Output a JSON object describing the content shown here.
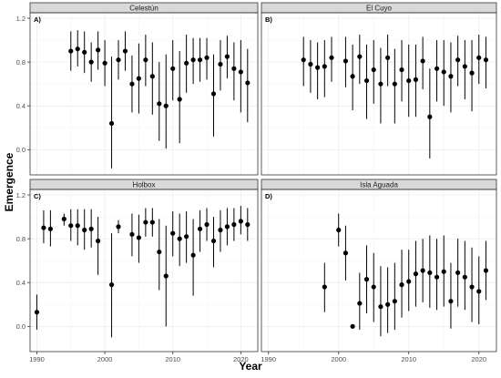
{
  "chart_data": {
    "type": "scatter",
    "subtype": "point-with-error-bars (faceted 2x2)",
    "xlabel": "Year",
    "ylabel": "Emergence",
    "xlim": [
      1989,
      2022.5
    ],
    "ylim": [
      -0.23,
      1.25
    ],
    "x_ticks": [
      1990,
      2000,
      2010,
      2020
    ],
    "y_ticks": [
      0.0,
      0.4,
      0.8,
      1.2
    ],
    "y_tick_labels": [
      "0.0",
      "0.4",
      "0.8",
      "1.2"
    ],
    "grid": true,
    "legend": "none",
    "colors": {
      "point": "#000000",
      "strip_fill": "#d9d9d9",
      "panel_border": "#333333",
      "grid_major": "#ebebeb",
      "grid_minor": "#f5f5f5"
    },
    "panels": [
      {
        "tag": "A)",
        "title": "Celestún",
        "points": [
          {
            "x": 1995,
            "y": 0.9,
            "lo": 0.72,
            "hi": 1.08
          },
          {
            "x": 1996,
            "y": 0.92,
            "lo": 0.76,
            "hi": 1.09
          },
          {
            "x": 1997,
            "y": 0.89,
            "lo": 0.7,
            "hi": 1.08
          },
          {
            "x": 1998,
            "y": 0.8,
            "lo": 0.62,
            "hi": 0.98
          },
          {
            "x": 1999,
            "y": 0.91,
            "lo": 0.73,
            "hi": 1.08
          },
          {
            "x": 2000,
            "y": 0.79,
            "lo": 0.58,
            "hi": 1.0
          },
          {
            "x": 2001,
            "y": 0.24,
            "lo": -0.17,
            "hi": 0.85
          },
          {
            "x": 2002,
            "y": 0.82,
            "lo": 0.64,
            "hi": 1.0
          },
          {
            "x": 2003,
            "y": 0.9,
            "lo": 0.72,
            "hi": 1.08
          },
          {
            "x": 2004,
            "y": 0.6,
            "lo": 0.34,
            "hi": 0.86
          },
          {
            "x": 2005,
            "y": 0.65,
            "lo": 0.33,
            "hi": 0.97
          },
          {
            "x": 2006,
            "y": 0.82,
            "lo": 0.58,
            "hi": 1.05
          },
          {
            "x": 2007,
            "y": 0.67,
            "lo": 0.32,
            "hi": 0.98
          },
          {
            "x": 2008,
            "y": 0.42,
            "lo": 0.08,
            "hi": 0.8
          },
          {
            "x": 2009,
            "y": 0.4,
            "lo": 0.01,
            "hi": 0.87
          },
          {
            "x": 2010,
            "y": 0.74,
            "lo": 0.45,
            "hi": 1.0
          },
          {
            "x": 2011,
            "y": 0.46,
            "lo": 0.06,
            "hi": 0.9
          },
          {
            "x": 2012,
            "y": 0.79,
            "lo": 0.52,
            "hi": 1.05
          },
          {
            "x": 2013,
            "y": 0.82,
            "lo": 0.6,
            "hi": 1.02
          },
          {
            "x": 2014,
            "y": 0.82,
            "lo": 0.62,
            "hi": 1.02
          },
          {
            "x": 2015,
            "y": 0.84,
            "lo": 0.64,
            "hi": 1.02
          },
          {
            "x": 2016,
            "y": 0.51,
            "lo": 0.12,
            "hi": 0.87
          },
          {
            "x": 2017,
            "y": 0.78,
            "lo": 0.54,
            "hi": 1.0
          },
          {
            "x": 2018,
            "y": 0.85,
            "lo": 0.65,
            "hi": 1.04
          },
          {
            "x": 2019,
            "y": 0.74,
            "lo": 0.45,
            "hi": 0.98
          },
          {
            "x": 2020,
            "y": 0.71,
            "lo": 0.34,
            "hi": 1.0
          },
          {
            "x": 2021,
            "y": 0.61,
            "lo": 0.25,
            "hi": 0.92
          }
        ]
      },
      {
        "tag": "B)",
        "title": "El Cuyo",
        "points": [
          {
            "x": 1995,
            "y": 0.82,
            "lo": 0.58,
            "hi": 1.03
          },
          {
            "x": 1996,
            "y": 0.78,
            "lo": 0.52,
            "hi": 1.0
          },
          {
            "x": 1997,
            "y": 0.75,
            "lo": 0.46,
            "hi": 0.98
          },
          {
            "x": 1998,
            "y": 0.76,
            "lo": 0.48,
            "hi": 1.0
          },
          {
            "x": 1999,
            "y": 0.84,
            "lo": 0.62,
            "hi": 1.03
          },
          {
            "x": 2001,
            "y": 0.81,
            "lo": 0.57,
            "hi": 1.03
          },
          {
            "x": 2002,
            "y": 0.67,
            "lo": 0.36,
            "hi": 0.96
          },
          {
            "x": 2003,
            "y": 0.85,
            "lo": 0.6,
            "hi": 1.05
          },
          {
            "x": 2004,
            "y": 0.63,
            "lo": 0.28,
            "hi": 0.96
          },
          {
            "x": 2005,
            "y": 0.73,
            "lo": 0.42,
            "hi": 1.0
          },
          {
            "x": 2006,
            "y": 0.6,
            "lo": 0.24,
            "hi": 0.93
          },
          {
            "x": 2007,
            "y": 0.84,
            "lo": 0.58,
            "hi": 1.05
          },
          {
            "x": 2008,
            "y": 0.6,
            "lo": 0.24,
            "hi": 0.92
          },
          {
            "x": 2009,
            "y": 0.73,
            "lo": 0.44,
            "hi": 1.0
          },
          {
            "x": 2010,
            "y": 0.63,
            "lo": 0.3,
            "hi": 0.96
          },
          {
            "x": 2011,
            "y": 0.64,
            "lo": 0.3,
            "hi": 0.96
          },
          {
            "x": 2012,
            "y": 0.81,
            "lo": 0.55,
            "hi": 1.03
          },
          {
            "x": 2013,
            "y": 0.3,
            "lo": -0.08,
            "hi": 0.74
          },
          {
            "x": 2014,
            "y": 0.74,
            "lo": 0.44,
            "hi": 1.0
          },
          {
            "x": 2015,
            "y": 0.71,
            "lo": 0.4,
            "hi": 1.0
          },
          {
            "x": 2016,
            "y": 0.67,
            "lo": 0.34,
            "hi": 0.98
          },
          {
            "x": 2017,
            "y": 0.82,
            "lo": 0.58,
            "hi": 1.04
          },
          {
            "x": 2018,
            "y": 0.76,
            "lo": 0.46,
            "hi": 1.0
          },
          {
            "x": 2019,
            "y": 0.7,
            "lo": 0.35,
            "hi": 1.0
          },
          {
            "x": 2020,
            "y": 0.84,
            "lo": 0.6,
            "hi": 1.05
          },
          {
            "x": 2021,
            "y": 0.82,
            "lo": 0.56,
            "hi": 1.03
          }
        ]
      },
      {
        "tag": "C)",
        "title": "Holbox",
        "points": [
          {
            "x": 1990,
            "y": 0.13,
            "lo": -0.03,
            "hi": 0.29
          },
          {
            "x": 1991,
            "y": 0.9,
            "lo": 0.76,
            "hi": 1.06
          },
          {
            "x": 1992,
            "y": 0.89,
            "lo": 0.73,
            "hi": 1.06
          },
          {
            "x": 1994,
            "y": 0.98,
            "lo": 0.92,
            "hi": 1.03
          },
          {
            "x": 1995,
            "y": 0.92,
            "lo": 0.78,
            "hi": 1.07
          },
          {
            "x": 1996,
            "y": 0.92,
            "lo": 0.74,
            "hi": 1.07
          },
          {
            "x": 1997,
            "y": 0.88,
            "lo": 0.7,
            "hi": 1.07
          },
          {
            "x": 1998,
            "y": 0.89,
            "lo": 0.72,
            "hi": 1.07
          },
          {
            "x": 1999,
            "y": 0.78,
            "lo": 0.47,
            "hi": 1.0
          },
          {
            "x": 2001,
            "y": 0.38,
            "lo": -0.1,
            "hi": 0.85
          },
          {
            "x": 2002,
            "y": 0.91,
            "lo": 0.85,
            "hi": 0.97
          },
          {
            "x": 2004,
            "y": 0.84,
            "lo": 0.64,
            "hi": 1.03
          },
          {
            "x": 2005,
            "y": 0.81,
            "lo": 0.58,
            "hi": 1.02
          },
          {
            "x": 2006,
            "y": 0.95,
            "lo": 0.82,
            "hi": 1.08
          },
          {
            "x": 2007,
            "y": 0.95,
            "lo": 0.82,
            "hi": 1.08
          },
          {
            "x": 2008,
            "y": 0.68,
            "lo": 0.33,
            "hi": 0.98
          },
          {
            "x": 2009,
            "y": 0.46,
            "lo": 0.0,
            "hi": 0.92
          },
          {
            "x": 2010,
            "y": 0.85,
            "lo": 0.64,
            "hi": 1.05
          },
          {
            "x": 2011,
            "y": 0.8,
            "lo": 0.55,
            "hi": 1.03
          },
          {
            "x": 2012,
            "y": 0.82,
            "lo": 0.58,
            "hi": 1.05
          },
          {
            "x": 2013,
            "y": 0.65,
            "lo": 0.28,
            "hi": 0.98
          },
          {
            "x": 2014,
            "y": 0.89,
            "lo": 0.68,
            "hi": 1.06
          },
          {
            "x": 2015,
            "y": 0.93,
            "lo": 0.78,
            "hi": 1.08
          },
          {
            "x": 2016,
            "y": 0.78,
            "lo": 0.54,
            "hi": 1.0
          },
          {
            "x": 2017,
            "y": 0.88,
            "lo": 0.68,
            "hi": 1.06
          },
          {
            "x": 2018,
            "y": 0.91,
            "lo": 0.74,
            "hi": 1.08
          },
          {
            "x": 2019,
            "y": 0.93,
            "lo": 0.78,
            "hi": 1.08
          },
          {
            "x": 2020,
            "y": 0.96,
            "lo": 0.84,
            "hi": 1.1
          },
          {
            "x": 2021,
            "y": 0.93,
            "lo": 0.78,
            "hi": 1.08
          }
        ]
      },
      {
        "tag": "D)",
        "title": "Isla Aguada",
        "points": [
          {
            "x": 1998,
            "y": 0.36,
            "lo": 0.13,
            "hi": 0.58
          },
          {
            "x": 2000,
            "y": 0.88,
            "lo": 0.73,
            "hi": 1.03
          },
          {
            "x": 2001,
            "y": 0.67,
            "lo": 0.42,
            "hi": 0.92
          },
          {
            "x": 2002,
            "y": 0.0,
            "lo": 0.0,
            "hi": 0.0
          },
          {
            "x": 2003,
            "y": 0.21,
            "lo": -0.03,
            "hi": 0.49
          },
          {
            "x": 2004,
            "y": 0.43,
            "lo": 0.12,
            "hi": 0.74
          },
          {
            "x": 2005,
            "y": 0.36,
            "lo": 0.04,
            "hi": 0.67
          },
          {
            "x": 2006,
            "y": 0.18,
            "lo": -0.09,
            "hi": 0.55
          },
          {
            "x": 2007,
            "y": 0.2,
            "lo": -0.06,
            "hi": 0.54
          },
          {
            "x": 2008,
            "y": 0.23,
            "lo": -0.03,
            "hi": 0.58
          },
          {
            "x": 2009,
            "y": 0.38,
            "lo": 0.08,
            "hi": 0.7
          },
          {
            "x": 2010,
            "y": 0.41,
            "lo": 0.14,
            "hi": 0.7
          },
          {
            "x": 2011,
            "y": 0.48,
            "lo": 0.18,
            "hi": 0.78
          },
          {
            "x": 2012,
            "y": 0.51,
            "lo": 0.22,
            "hi": 0.8
          },
          {
            "x": 2013,
            "y": 0.49,
            "lo": 0.17,
            "hi": 0.83
          },
          {
            "x": 2014,
            "y": 0.45,
            "lo": 0.15,
            "hi": 0.8
          },
          {
            "x": 2015,
            "y": 0.5,
            "lo": 0.18,
            "hi": 0.83
          },
          {
            "x": 2016,
            "y": 0.23,
            "lo": -0.02,
            "hi": 0.58
          },
          {
            "x": 2017,
            "y": 0.49,
            "lo": 0.18,
            "hi": 0.8
          },
          {
            "x": 2018,
            "y": 0.45,
            "lo": 0.15,
            "hi": 0.78
          },
          {
            "x": 2019,
            "y": 0.36,
            "lo": 0.04,
            "hi": 0.72
          },
          {
            "x": 2020,
            "y": 0.32,
            "lo": 0.02,
            "hi": 0.64
          },
          {
            "x": 2021,
            "y": 0.51,
            "lo": 0.24,
            "hi": 0.78
          }
        ]
      }
    ]
  }
}
